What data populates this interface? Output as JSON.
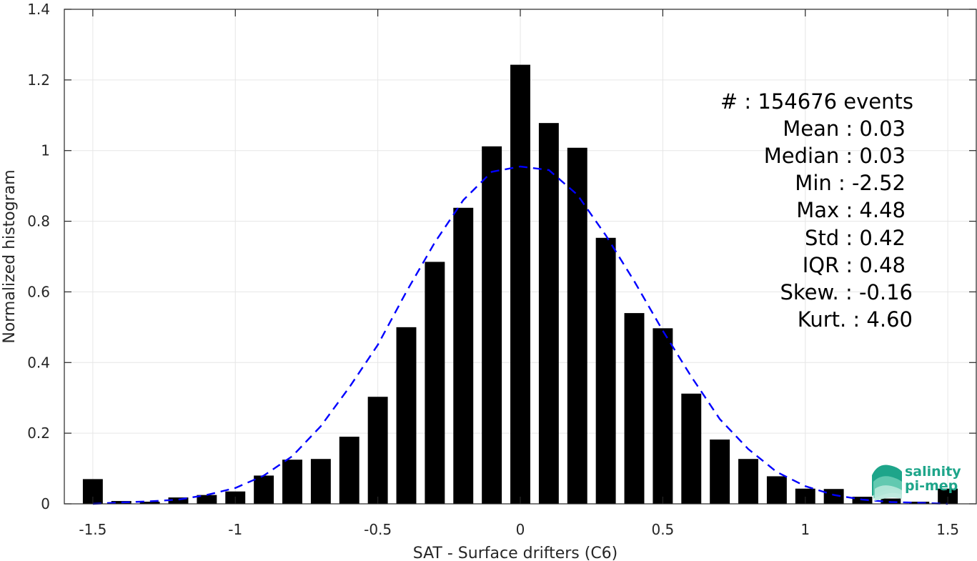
{
  "chart_data": {
    "type": "bar",
    "xlabel": "SAT - Surface drifters (C6)",
    "ylabel": "Normalized histogram",
    "xlim": [
      -1.6,
      1.6
    ],
    "ylim": [
      0,
      1.4
    ],
    "xticks": [
      -1.5,
      -1,
      -0.5,
      0,
      0.5,
      1,
      1.5
    ],
    "xtick_labels": [
      "-1.5",
      "-1",
      "-0.5",
      "0",
      "0.5",
      "1",
      "1.5"
    ],
    "yticks": [
      0,
      0.2,
      0.4,
      0.6,
      0.8,
      1,
      1.2,
      1.4
    ],
    "ytick_labels": [
      "0",
      "0.2",
      "0.4",
      "0.6",
      "0.8",
      "1",
      "1.2",
      "1.4"
    ],
    "grid": true,
    "bar_color": "#000000",
    "fit_color": "#0000ff",
    "bins": [
      {
        "x": -1.5,
        "y": 0.07
      },
      {
        "x": -1.4,
        "y": 0.008
      },
      {
        "x": -1.3,
        "y": 0.006
      },
      {
        "x": -1.2,
        "y": 0.018
      },
      {
        "x": -1.1,
        "y": 0.025
      },
      {
        "x": -1.0,
        "y": 0.035
      },
      {
        "x": -0.9,
        "y": 0.08
      },
      {
        "x": -0.8,
        "y": 0.125
      },
      {
        "x": -0.7,
        "y": 0.127
      },
      {
        "x": -0.6,
        "y": 0.19
      },
      {
        "x": -0.5,
        "y": 0.303
      },
      {
        "x": -0.4,
        "y": 0.5
      },
      {
        "x": -0.3,
        "y": 0.685
      },
      {
        "x": -0.2,
        "y": 0.838
      },
      {
        "x": -0.1,
        "y": 1.012
      },
      {
        "x": 0.0,
        "y": 1.243
      },
      {
        "x": 0.1,
        "y": 1.078
      },
      {
        "x": 0.2,
        "y": 1.008
      },
      {
        "x": 0.3,
        "y": 0.753
      },
      {
        "x": 0.4,
        "y": 0.54
      },
      {
        "x": 0.5,
        "y": 0.497
      },
      {
        "x": 0.6,
        "y": 0.312
      },
      {
        "x": 0.7,
        "y": 0.182
      },
      {
        "x": 0.8,
        "y": 0.127
      },
      {
        "x": 0.9,
        "y": 0.078
      },
      {
        "x": 1.0,
        "y": 0.043
      },
      {
        "x": 1.1,
        "y": 0.042
      },
      {
        "x": 1.2,
        "y": 0.02
      },
      {
        "x": 1.3,
        "y": 0.015
      },
      {
        "x": 1.4,
        "y": 0.006
      },
      {
        "x": 1.5,
        "y": 0.043
      }
    ],
    "fit_curve": {
      "style": "dashed",
      "x": [
        -1.5,
        -1.4,
        -1.3,
        -1.2,
        -1.1,
        -1.0,
        -0.9,
        -0.8,
        -0.7,
        -0.6,
        -0.5,
        -0.4,
        -0.3,
        -0.2,
        -0.1,
        0.0,
        0.1,
        0.2,
        0.3,
        0.4,
        0.5,
        0.6,
        0.7,
        0.8,
        0.9,
        1.0,
        1.1,
        1.2,
        1.3,
        1.4,
        1.5
      ],
      "y": [
        0.0,
        0.004,
        0.007,
        0.012,
        0.025,
        0.045,
        0.08,
        0.135,
        0.22,
        0.33,
        0.45,
        0.6,
        0.74,
        0.86,
        0.94,
        0.955,
        0.945,
        0.875,
        0.76,
        0.63,
        0.49,
        0.36,
        0.24,
        0.155,
        0.09,
        0.05,
        0.025,
        0.012,
        0.005,
        0.003,
        0.0
      ]
    }
  },
  "stats": [
    {
      "label": "#  : 154676 events"
    },
    {
      "label": "Mean : 0.03"
    },
    {
      "label": "Median : 0.03"
    },
    {
      "label": "Min : -2.52"
    },
    {
      "label": "Max : 4.48"
    },
    {
      "label": "Std : 0.42"
    },
    {
      "label": "IQR : 0.48"
    },
    {
      "label": "Skew. : -0.16"
    },
    {
      "label": "Kurt. : 4.60"
    }
  ],
  "logo": {
    "line1": "salinity",
    "line2": "pi-mep",
    "color": "#1ea58a"
  }
}
